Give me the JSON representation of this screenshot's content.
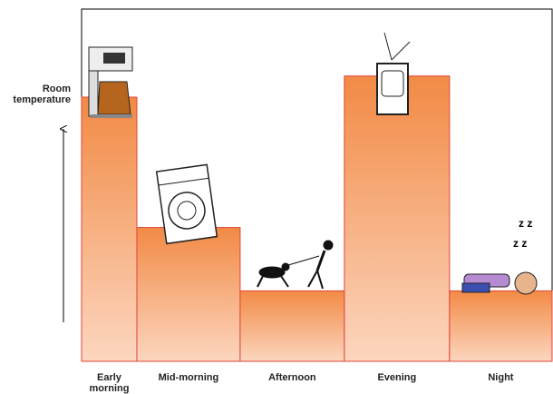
{
  "chart_data": {
    "type": "bar",
    "y_label": "Room temperature",
    "categories": [
      "Early morning",
      "Mid-morning",
      "Afternoon",
      "Evening",
      "Night"
    ],
    "values": [
      75,
      38,
      20,
      81,
      20
    ],
    "ylim": [
      0,
      100
    ],
    "color": "#f28a45",
    "edge_color": "#e0463a"
  }
}
